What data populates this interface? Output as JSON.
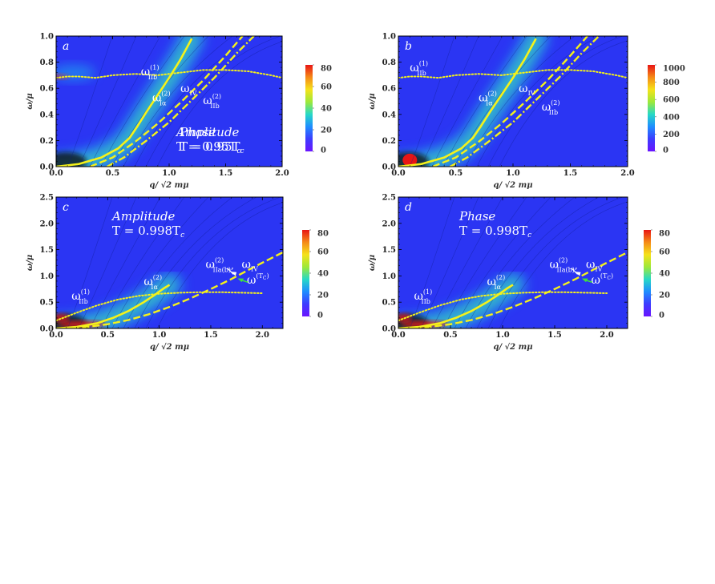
{
  "colors": {
    "background": "#2b35f3",
    "yellow": "#f5f21a",
    "cbar": [
      "#6a14ff",
      "#3d3cff",
      "#1f8dff",
      "#27d9c6",
      "#9de83a",
      "#f5e21a",
      "#f58a17",
      "#e81515"
    ]
  },
  "chart_data": [
    {
      "type": "heatmap",
      "panel_label": "a",
      "xlabel": "q/ √2 mμ",
      "ylabel": "ω/μ",
      "xlim": [
        0,
        2
      ],
      "ylim": [
        0,
        1
      ],
      "xticks": [
        "0.0",
        "0.5",
        "1.0",
        "1.5",
        "2.0"
      ],
      "yticks": [
        "0.0",
        "0.2",
        "0.4",
        "0.6",
        "0.8",
        "1.0"
      ],
      "colorbar": {
        "ticks": [
          "0",
          "20",
          "40",
          "60",
          "80"
        ],
        "range": [
          0,
          80
        ]
      },
      "annotation_lines": [
        "Amplitude",
        "T = 0.95T",
        "c"
      ],
      "curve_labels": [
        {
          "main": "ω",
          "sup": "(1)",
          "sub": "IIb",
          "at": [
            0.75,
            0.7
          ]
        },
        {
          "main": "ω",
          "sup": "(2)",
          "sub": "Iα",
          "at": [
            0.85,
            0.5
          ]
        },
        {
          "main": "ω",
          "sub": "IV",
          "at": [
            1.1,
            0.57
          ]
        },
        {
          "main": "ω",
          "sup": "(2)",
          "sub": "IIb",
          "at": [
            1.3,
            0.48
          ]
        }
      ],
      "series": [
        {
          "style": "solid",
          "x": [
            0.0,
            0.2,
            0.4,
            0.55,
            0.65,
            0.72,
            0.8,
            0.9,
            1.0,
            1.1,
            1.2
          ],
          "y": [
            0.0,
            0.02,
            0.07,
            0.14,
            0.22,
            0.31,
            0.42,
            0.55,
            0.68,
            0.82,
            0.98
          ]
        },
        {
          "style": "dashed",
          "x": [
            0.3,
            0.5,
            0.7,
            0.9,
            1.1,
            1.3,
            1.5,
            1.65
          ],
          "y": [
            0.0,
            0.07,
            0.19,
            0.33,
            0.49,
            0.66,
            0.85,
            1.0
          ]
        },
        {
          "style": "dashdot",
          "x": [
            0.45,
            0.6,
            0.8,
            1.0,
            1.2,
            1.4,
            1.6,
            1.75
          ],
          "y": [
            0.0,
            0.07,
            0.2,
            0.34,
            0.51,
            0.68,
            0.87,
            1.0
          ]
        },
        {
          "style": "dotted",
          "x": [
            0.0,
            0.1,
            0.2,
            0.35,
            0.5,
            0.7,
            0.9,
            1.1,
            1.3,
            1.5,
            1.7,
            1.9,
            2.0
          ],
          "y": [
            0.68,
            0.69,
            0.69,
            0.68,
            0.7,
            0.71,
            0.7,
            0.72,
            0.74,
            0.74,
            0.73,
            0.7,
            0.68
          ]
        }
      ]
    },
    {
      "type": "heatmap",
      "panel_label": "b",
      "xlabel": "q/ √2 mμ",
      "ylabel": "ω/μ",
      "xlim": [
        0,
        2
      ],
      "ylim": [
        0,
        1
      ],
      "xticks": [
        "0.0",
        "0.5",
        "1.0",
        "1.5",
        "2.0"
      ],
      "yticks": [
        "0.0",
        "0.2",
        "0.4",
        "0.6",
        "0.8",
        "1.0"
      ],
      "colorbar": {
        "ticks": [
          "0",
          "200",
          "400",
          "600",
          "800",
          "1000"
        ],
        "range": [
          0,
          1000
        ]
      },
      "annotation_lines": [
        "Phase",
        "T = 0.95T",
        "c"
      ],
      "curve_labels": [
        {
          "main": "ω",
          "sup": "(1)",
          "sub": "IIb",
          "at": [
            0.1,
            0.73
          ]
        },
        {
          "main": "ω",
          "sup": "(2)",
          "sub": "Iα",
          "at": [
            0.7,
            0.5
          ]
        },
        {
          "main": "ω",
          "sub": "IV",
          "at": [
            1.05,
            0.57
          ]
        },
        {
          "main": "ω",
          "sup": "(2)",
          "sub": "IIb",
          "at": [
            1.25,
            0.43
          ]
        }
      ],
      "series": [
        {
          "style": "solid",
          "x": [
            0.0,
            0.2,
            0.4,
            0.55,
            0.65,
            0.72,
            0.8,
            0.9,
            1.0,
            1.1,
            1.2
          ],
          "y": [
            0.0,
            0.02,
            0.07,
            0.14,
            0.22,
            0.31,
            0.42,
            0.55,
            0.68,
            0.82,
            0.98
          ]
        },
        {
          "style": "dashed",
          "x": [
            0.3,
            0.5,
            0.7,
            0.9,
            1.1,
            1.3,
            1.5,
            1.65
          ],
          "y": [
            0.0,
            0.07,
            0.19,
            0.33,
            0.49,
            0.66,
            0.85,
            1.0
          ]
        },
        {
          "style": "dashdot",
          "x": [
            0.45,
            0.6,
            0.8,
            1.0,
            1.2,
            1.4,
            1.6,
            1.75
          ],
          "y": [
            0.0,
            0.07,
            0.2,
            0.34,
            0.51,
            0.68,
            0.87,
            1.0
          ]
        },
        {
          "style": "dotted",
          "x": [
            0.0,
            0.1,
            0.2,
            0.35,
            0.5,
            0.7,
            0.9,
            1.1,
            1.3,
            1.5,
            1.7,
            1.9,
            2.0
          ],
          "y": [
            0.68,
            0.69,
            0.69,
            0.68,
            0.7,
            0.71,
            0.7,
            0.72,
            0.74,
            0.74,
            0.73,
            0.7,
            0.68
          ]
        }
      ]
    },
    {
      "type": "heatmap",
      "panel_label": "c",
      "xlabel": "q/ √2 mμ",
      "ylabel": "ω/μ",
      "xlim": [
        0,
        2.2
      ],
      "ylim": [
        0,
        2.5
      ],
      "xticks": [
        "0.0",
        "0.5",
        "1.0",
        "1.5",
        "2.0"
      ],
      "yticks": [
        "0.0",
        "0.5",
        "1.0",
        "1.5",
        "2.0",
        "2.5"
      ],
      "colorbar": {
        "ticks": [
          "0",
          "20",
          "40",
          "60",
          "80"
        ],
        "range": [
          0,
          80
        ]
      },
      "annotation_lines": [
        "Amplitude",
        "T = 0.998T",
        "c"
      ],
      "curve_labels": [
        {
          "main": "ω",
          "sup": "(1)",
          "sub": "IIb",
          "at": [
            0.15,
            0.55
          ]
        },
        {
          "main": "ω",
          "sup": "(2)",
          "sub": "Iα",
          "at": [
            0.85,
            0.82
          ]
        },
        {
          "main": "ω",
          "sup": "(2)",
          "sub": "IIa(b)",
          "suffix": ",",
          "at": [
            1.45,
            1.15
          ]
        },
        {
          "main": "ω",
          "sub": "IV",
          "at": [
            1.8,
            1.15
          ]
        },
        {
          "main": "ω",
          "sup": "(T",
          "supsub": "C",
          "supend": ")",
          "at": [
            1.85,
            0.85
          ]
        }
      ],
      "series": [
        {
          "style": "solid",
          "x": [
            0.0,
            0.2,
            0.4,
            0.55,
            0.7,
            0.85,
            0.95,
            1.05,
            1.1
          ],
          "y": [
            0.0,
            0.03,
            0.1,
            0.2,
            0.33,
            0.5,
            0.63,
            0.77,
            0.83
          ]
        },
        {
          "style": "dashed",
          "x": [
            0.05,
            0.3,
            0.5,
            0.7,
            0.9,
            1.1,
            1.3,
            1.5,
            1.7,
            1.9,
            2.1,
            2.2
          ],
          "y": [
            0.0,
            0.03,
            0.08,
            0.16,
            0.27,
            0.41,
            0.57,
            0.75,
            0.94,
            1.15,
            1.35,
            1.45
          ]
        },
        {
          "style": "dotted",
          "x": [
            0.0,
            0.2,
            0.4,
            0.6,
            0.8,
            1.0,
            1.2,
            1.4,
            1.6,
            1.8,
            2.0
          ],
          "y": [
            0.15,
            0.3,
            0.44,
            0.55,
            0.62,
            0.66,
            0.68,
            0.69,
            0.69,
            0.68,
            0.67
          ]
        }
      ]
    },
    {
      "type": "heatmap",
      "panel_label": "d",
      "xlabel": "q/ √2 mμ",
      "ylabel": "ω/μ",
      "xlim": [
        0,
        2.2
      ],
      "ylim": [
        0,
        2.5
      ],
      "xticks": [
        "0.0",
        "0.5",
        "1.0",
        "1.5",
        "2.0"
      ],
      "yticks": [
        "0.0",
        "0.5",
        "1.0",
        "1.5",
        "2.0",
        "2.5"
      ],
      "colorbar": {
        "ticks": [
          "0",
          "20",
          "40",
          "60",
          "80"
        ],
        "range": [
          0,
          80
        ]
      },
      "annotation_lines": [
        "Phase",
        "T = 0.998T",
        "c"
      ],
      "curve_labels": [
        {
          "main": "ω",
          "sup": "(1)",
          "sub": "IIb",
          "at": [
            0.15,
            0.55
          ]
        },
        {
          "main": "ω",
          "sup": "(2)",
          "sub": "Iα",
          "at": [
            0.85,
            0.82
          ]
        },
        {
          "main": "ω",
          "sup": "(2)",
          "sub": "IIa(b)",
          "suffix": ",",
          "at": [
            1.45,
            1.15
          ]
        },
        {
          "main": "ω",
          "sub": "IV",
          "at": [
            1.8,
            1.15
          ]
        },
        {
          "main": "ω",
          "sup": "(T",
          "supsub": "C",
          "supend": ")",
          "at": [
            1.85,
            0.85
          ]
        }
      ],
      "series": [
        {
          "style": "solid",
          "x": [
            0.0,
            0.2,
            0.4,
            0.55,
            0.7,
            0.85,
            0.95,
            1.05,
            1.1
          ],
          "y": [
            0.0,
            0.03,
            0.1,
            0.2,
            0.33,
            0.5,
            0.63,
            0.77,
            0.83
          ]
        },
        {
          "style": "dashed",
          "x": [
            0.05,
            0.3,
            0.5,
            0.7,
            0.9,
            1.1,
            1.3,
            1.5,
            1.7,
            1.9,
            2.1,
            2.2
          ],
          "y": [
            0.0,
            0.03,
            0.08,
            0.16,
            0.27,
            0.41,
            0.57,
            0.75,
            0.94,
            1.15,
            1.35,
            1.45
          ]
        },
        {
          "style": "dotted",
          "x": [
            0.0,
            0.2,
            0.4,
            0.6,
            0.8,
            1.0,
            1.2,
            1.4,
            1.6,
            1.8,
            2.0
          ],
          "y": [
            0.15,
            0.3,
            0.44,
            0.55,
            0.62,
            0.66,
            0.68,
            0.69,
            0.69,
            0.68,
            0.67
          ]
        }
      ]
    }
  ]
}
